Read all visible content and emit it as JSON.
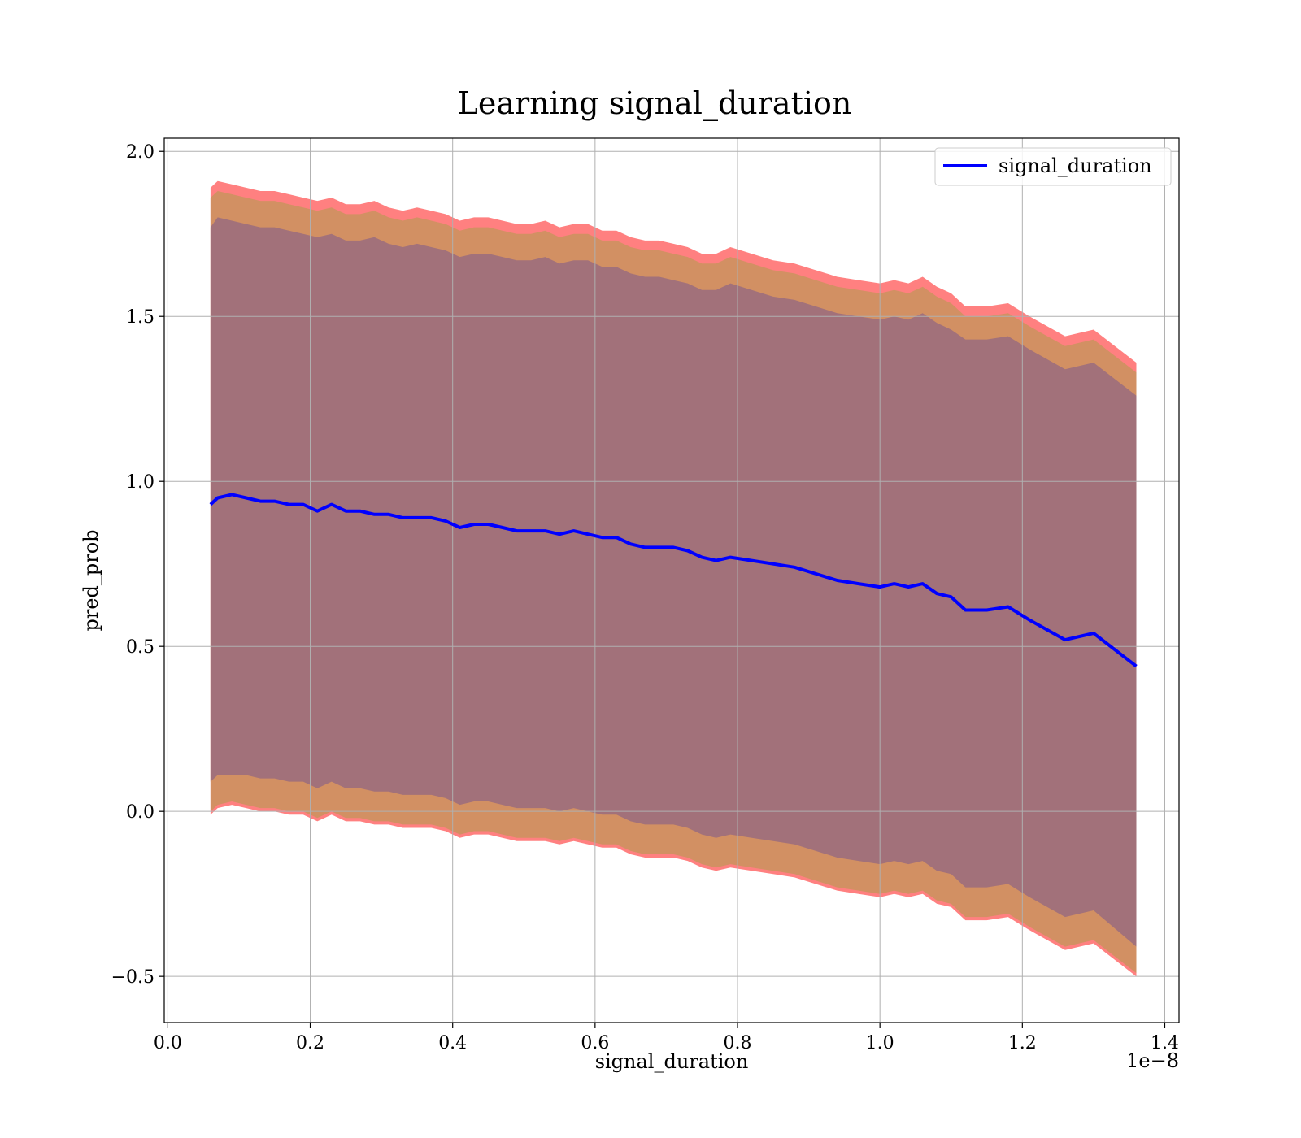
{
  "chart_data": {
    "type": "line",
    "title": "Learning signal_duration",
    "xlabel": "signal_duration",
    "ylabel": "pred_prob",
    "x_offset_label": "1e−8",
    "xlim": [
      -0.005,
      1.42
    ],
    "ylim": [
      -0.64,
      2.04
    ],
    "x_ticks": [
      0.0,
      0.2,
      0.4,
      0.6,
      0.8,
      1.0,
      1.2,
      1.4
    ],
    "x_tick_labels": [
      "0.0",
      "0.2",
      "0.4",
      "0.6",
      "0.8",
      "1.0",
      "1.2",
      "1.4"
    ],
    "y_ticks": [
      -0.5,
      0.0,
      0.5,
      1.0,
      1.5,
      2.0
    ],
    "y_tick_labels": [
      "−0.5",
      "0.0",
      "0.5",
      "1.0",
      "1.5",
      "2.0"
    ],
    "grid": true,
    "legend": {
      "position": "top-right",
      "entries": [
        "signal_duration"
      ]
    },
    "series": [
      {
        "name": "signal_duration",
        "color": "#0000ff",
        "x": [
          0.06,
          0.07,
          0.09,
          0.11,
          0.13,
          0.15,
          0.17,
          0.19,
          0.21,
          0.23,
          0.25,
          0.27,
          0.29,
          0.31,
          0.33,
          0.35,
          0.37,
          0.39,
          0.41,
          0.43,
          0.45,
          0.47,
          0.49,
          0.51,
          0.53,
          0.55,
          0.57,
          0.59,
          0.61,
          0.63,
          0.65,
          0.67,
          0.69,
          0.71,
          0.73,
          0.75,
          0.77,
          0.79,
          0.82,
          0.85,
          0.88,
          0.91,
          0.94,
          0.97,
          1.0,
          1.02,
          1.04,
          1.06,
          1.08,
          1.1,
          1.12,
          1.15,
          1.18,
          1.21,
          1.26,
          1.3,
          1.36
        ],
        "y": [
          0.93,
          0.95,
          0.96,
          0.95,
          0.94,
          0.94,
          0.93,
          0.93,
          0.91,
          0.93,
          0.91,
          0.91,
          0.9,
          0.9,
          0.89,
          0.89,
          0.89,
          0.88,
          0.86,
          0.87,
          0.87,
          0.86,
          0.85,
          0.85,
          0.85,
          0.84,
          0.85,
          0.84,
          0.83,
          0.83,
          0.81,
          0.8,
          0.8,
          0.8,
          0.79,
          0.77,
          0.76,
          0.77,
          0.76,
          0.75,
          0.74,
          0.72,
          0.7,
          0.69,
          0.68,
          0.69,
          0.68,
          0.69,
          0.66,
          0.65,
          0.61,
          0.61,
          0.62,
          0.58,
          0.52,
          0.54,
          0.44
        ]
      }
    ],
    "bands": [
      {
        "color": "#ff8080",
        "upper": [
          1.89,
          1.91,
          1.9,
          1.89,
          1.88,
          1.88,
          1.87,
          1.86,
          1.85,
          1.86,
          1.84,
          1.84,
          1.85,
          1.83,
          1.82,
          1.83,
          1.82,
          1.81,
          1.79,
          1.8,
          1.8,
          1.79,
          1.78,
          1.78,
          1.79,
          1.77,
          1.78,
          1.78,
          1.76,
          1.76,
          1.74,
          1.73,
          1.73,
          1.72,
          1.71,
          1.69,
          1.69,
          1.71,
          1.69,
          1.67,
          1.66,
          1.64,
          1.62,
          1.61,
          1.6,
          1.61,
          1.6,
          1.62,
          1.59,
          1.57,
          1.53,
          1.53,
          1.54,
          1.5,
          1.44,
          1.46,
          1.36
        ],
        "lower": [
          -0.01,
          0.01,
          0.02,
          0.01,
          0.0,
          0.0,
          -0.01,
          -0.01,
          -0.03,
          -0.01,
          -0.03,
          -0.03,
          -0.04,
          -0.04,
          -0.05,
          -0.05,
          -0.05,
          -0.06,
          -0.08,
          -0.07,
          -0.07,
          -0.08,
          -0.09,
          -0.09,
          -0.09,
          -0.1,
          -0.09,
          -0.1,
          -0.11,
          -0.11,
          -0.13,
          -0.14,
          -0.14,
          -0.14,
          -0.15,
          -0.17,
          -0.18,
          -0.17,
          -0.18,
          -0.19,
          -0.2,
          -0.22,
          -0.24,
          -0.25,
          -0.26,
          -0.25,
          -0.26,
          -0.25,
          -0.28,
          -0.29,
          -0.33,
          -0.33,
          -0.32,
          -0.36,
          -0.42,
          -0.4,
          -0.5
        ]
      },
      {
        "color": "#d29063",
        "upper": [
          1.86,
          1.88,
          1.87,
          1.86,
          1.85,
          1.85,
          1.84,
          1.83,
          1.82,
          1.83,
          1.81,
          1.81,
          1.82,
          1.8,
          1.79,
          1.8,
          1.79,
          1.78,
          1.76,
          1.77,
          1.77,
          1.76,
          1.75,
          1.75,
          1.76,
          1.74,
          1.75,
          1.75,
          1.73,
          1.73,
          1.71,
          1.7,
          1.7,
          1.69,
          1.68,
          1.66,
          1.66,
          1.68,
          1.66,
          1.64,
          1.63,
          1.61,
          1.59,
          1.58,
          1.57,
          1.58,
          1.57,
          1.59,
          1.56,
          1.54,
          1.5,
          1.5,
          1.51,
          1.47,
          1.41,
          1.43,
          1.33
        ],
        "lower": [
          0.0,
          0.02,
          0.03,
          0.02,
          0.01,
          0.01,
          0.0,
          0.0,
          -0.02,
          0.0,
          -0.02,
          -0.02,
          -0.03,
          -0.03,
          -0.04,
          -0.04,
          -0.04,
          -0.05,
          -0.07,
          -0.06,
          -0.06,
          -0.07,
          -0.08,
          -0.08,
          -0.08,
          -0.09,
          -0.08,
          -0.09,
          -0.1,
          -0.1,
          -0.12,
          -0.13,
          -0.13,
          -0.13,
          -0.14,
          -0.16,
          -0.17,
          -0.16,
          -0.17,
          -0.18,
          -0.19,
          -0.21,
          -0.23,
          -0.24,
          -0.25,
          -0.24,
          -0.25,
          -0.24,
          -0.27,
          -0.28,
          -0.32,
          -0.32,
          -0.31,
          -0.35,
          -0.41,
          -0.39,
          -0.49
        ]
      },
      {
        "color": "#a2717a",
        "upper": [
          1.77,
          1.8,
          1.79,
          1.78,
          1.77,
          1.77,
          1.76,
          1.75,
          1.74,
          1.75,
          1.73,
          1.73,
          1.74,
          1.72,
          1.71,
          1.72,
          1.71,
          1.7,
          1.68,
          1.69,
          1.69,
          1.68,
          1.67,
          1.67,
          1.68,
          1.66,
          1.67,
          1.67,
          1.65,
          1.65,
          1.63,
          1.62,
          1.62,
          1.61,
          1.6,
          1.58,
          1.58,
          1.6,
          1.58,
          1.56,
          1.55,
          1.53,
          1.51,
          1.5,
          1.49,
          1.5,
          1.49,
          1.51,
          1.48,
          1.46,
          1.43,
          1.43,
          1.44,
          1.4,
          1.34,
          1.36,
          1.26
        ],
        "lower": [
          0.09,
          0.11,
          0.11,
          0.11,
          0.1,
          0.1,
          0.09,
          0.09,
          0.07,
          0.09,
          0.07,
          0.07,
          0.06,
          0.06,
          0.05,
          0.05,
          0.05,
          0.04,
          0.02,
          0.03,
          0.03,
          0.02,
          0.01,
          0.01,
          0.01,
          0.0,
          0.01,
          0.0,
          -0.01,
          -0.01,
          -0.03,
          -0.04,
          -0.04,
          -0.04,
          -0.05,
          -0.07,
          -0.08,
          -0.07,
          -0.08,
          -0.09,
          -0.1,
          -0.12,
          -0.14,
          -0.15,
          -0.16,
          -0.15,
          -0.16,
          -0.15,
          -0.18,
          -0.19,
          -0.23,
          -0.23,
          -0.22,
          -0.26,
          -0.32,
          -0.3,
          -0.41
        ]
      }
    ]
  }
}
